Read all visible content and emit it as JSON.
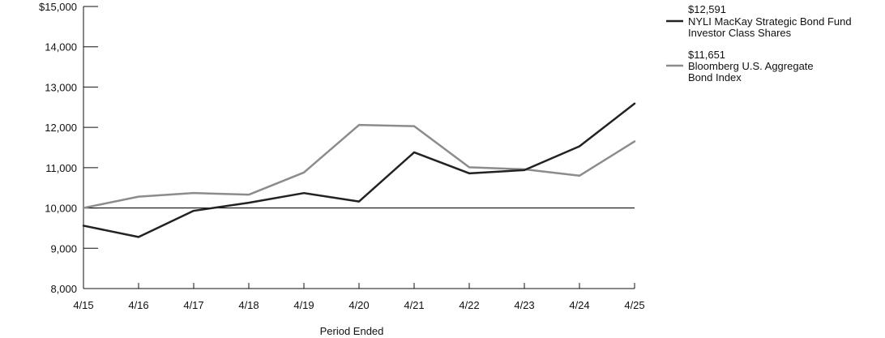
{
  "chart_data": {
    "type": "line",
    "title": "",
    "xlabel": "Period Ended",
    "ylabel": "",
    "categories": [
      "4/15",
      "4/16",
      "4/17",
      "4/18",
      "4/19",
      "4/20",
      "4/21",
      "4/22",
      "4/23",
      "4/24",
      "4/25"
    ],
    "y_tick_labels": [
      "8,000",
      "9,000",
      "10,000",
      "11,000",
      "12,000",
      "13,000",
      "14,000",
      "$15,000"
    ],
    "y_ticks": [
      8000,
      9000,
      10000,
      11000,
      12000,
      13000,
      14000,
      15000
    ],
    "ylim": [
      8000,
      15000
    ],
    "reference_line": 10000,
    "grid": false,
    "legend_position": "top-right",
    "series": [
      {
        "name": "NYLI MacKay Strategic Bond Fund Investor Class Shares",
        "name_lines": [
          "NYLI MacKay Strategic Bond Fund",
          "Investor Class Shares"
        ],
        "ending_value_label": "$12,591",
        "color": "#222222",
        "values": [
          9560,
          9280,
          9930,
          10130,
          10370,
          10160,
          11380,
          10860,
          10940,
          11530,
          12591
        ]
      },
      {
        "name": "Bloomberg U.S. Aggregate Bond Index",
        "name_lines": [
          "Bloomberg  U.S. Aggregate",
          "Bond Index"
        ],
        "ending_value_label": "$11,651",
        "color": "#8c8c8c",
        "values": [
          10000,
          10280,
          10370,
          10330,
          10880,
          12060,
          12030,
          11010,
          10960,
          10800,
          11651
        ]
      }
    ]
  }
}
